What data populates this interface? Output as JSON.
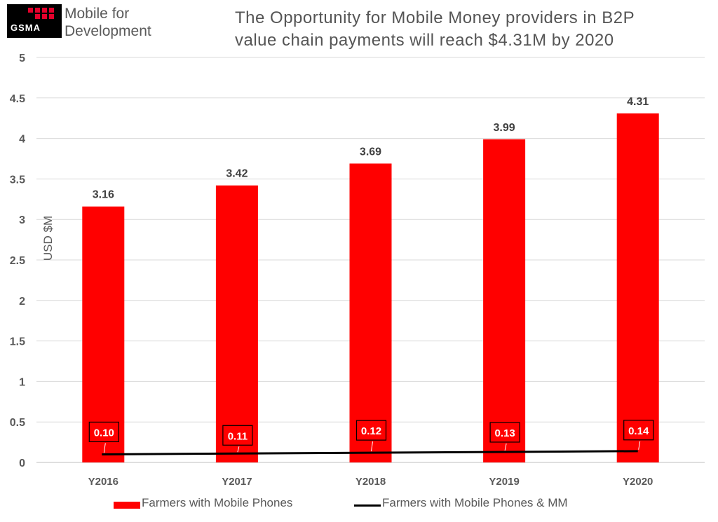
{
  "logo": {
    "badge_text": "GSMA",
    "line1": "Mobile for",
    "line2": "Development"
  },
  "colors": {
    "bar": "#ff0000",
    "line": "#000000",
    "grid": "#d9d9d9",
    "axis_text": "#595959",
    "value_text": "#404040"
  },
  "chart_data": {
    "type": "bar",
    "title_lines": [
      "The Opportunity for Mobile Money providers in B2P",
      "value chain payments will reach $4.31M by 2020"
    ],
    "ylabel": "USD $M",
    "xlabel": "",
    "ylim": [
      0,
      5
    ],
    "yticks": [
      "5",
      "4.5",
      "4",
      "3.5",
      "3",
      "2.5",
      "2",
      "1.5",
      "1",
      "0.5",
      "0"
    ],
    "grid": true,
    "legend_position": "bottom",
    "categories": [
      "Y2016",
      "Y2017",
      "Y2018",
      "Y2019",
      "Y2020"
    ],
    "series": [
      {
        "name": "Farmers with Mobile Phones",
        "type": "bar",
        "values": [
          3.16,
          3.42,
          3.69,
          3.99,
          4.31
        ],
        "labels": [
          "3.16",
          "3.42",
          "3.69",
          "3.99",
          "4.31"
        ]
      },
      {
        "name": "Farmers with Mobile Phones & MM",
        "type": "line",
        "values": [
          0.1,
          0.11,
          0.12,
          0.13,
          0.14
        ],
        "labels": [
          "0.10",
          "0.11",
          "0.12",
          "0.13",
          "0.14"
        ]
      }
    ]
  }
}
